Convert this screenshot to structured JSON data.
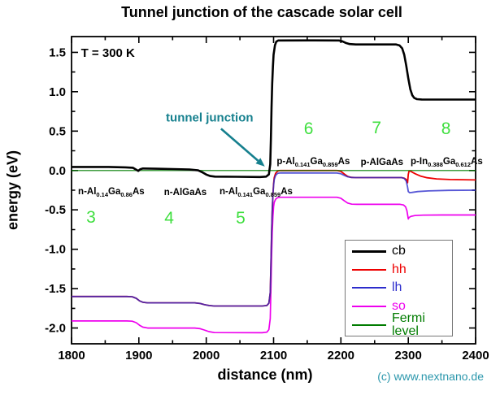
{
  "title": "Tunnel junction of the cascade solar cell",
  "chart_data": {
    "type": "line",
    "title": "Tunnel junction of the cascade solar cell",
    "xlabel": "distance (nm)",
    "ylabel": "energy (eV)",
    "xlim": [
      1800,
      2400
    ],
    "ylim": [
      -2.2,
      1.7
    ],
    "x_major_ticks": [
      1800,
      1900,
      2000,
      2100,
      2200,
      2300,
      2400
    ],
    "x_minor_step": 50,
    "y_major_ticks": [
      1.5,
      1.0,
      0.5,
      0.0,
      -0.5,
      -1.0,
      -1.5,
      -2.0
    ],
    "y_minor_step": 0.25,
    "grid": false,
    "legend_position": "inside-bottom-right",
    "series": [
      {
        "name": "cb",
        "color": "#000000",
        "points": [
          [
            1800,
            0.045
          ],
          [
            1855,
            0.045
          ],
          [
            1880,
            0.04
          ],
          [
            1891,
            0.035
          ],
          [
            1896,
            0.01
          ],
          [
            1899,
            -0.005
          ],
          [
            1902,
            0.015
          ],
          [
            1906,
            0.025
          ],
          [
            1925,
            0.022
          ],
          [
            1950,
            0.018
          ],
          [
            1975,
            0.012
          ],
          [
            1988,
            0.002
          ],
          [
            1994,
            -0.022
          ],
          [
            2000,
            -0.052
          ],
          [
            2006,
            -0.07
          ],
          [
            2013,
            -0.078
          ],
          [
            2045,
            -0.08
          ],
          [
            2080,
            -0.083
          ],
          [
            2089,
            -0.078
          ],
          [
            2093,
            -0.05
          ],
          [
            2095,
            0.08
          ],
          [
            2096,
            0.4
          ],
          [
            2097,
            0.8
          ],
          [
            2098,
            1.1
          ],
          [
            2099,
            1.32
          ],
          [
            2100,
            1.47
          ],
          [
            2102,
            1.59
          ],
          [
            2104,
            1.635
          ],
          [
            2107,
            1.65
          ],
          [
            2160,
            1.652
          ],
          [
            2197,
            1.65
          ],
          [
            2202,
            1.64
          ],
          [
            2207,
            1.621
          ],
          [
            2213,
            1.605
          ],
          [
            2222,
            1.6
          ],
          [
            2282,
            1.6
          ],
          [
            2287,
            1.588
          ],
          [
            2291,
            1.55
          ],
          [
            2294,
            1.47
          ],
          [
            2297,
            1.33
          ],
          [
            2300,
            1.17
          ],
          [
            2303,
            1.03
          ],
          [
            2306,
            0.955
          ],
          [
            2309,
            0.92
          ],
          [
            2313,
            0.906
          ],
          [
            2320,
            0.901
          ],
          [
            2400,
            0.9
          ]
        ]
      },
      {
        "name": "hh",
        "color": "#ee0000",
        "points": [
          [
            1800,
            -1.6
          ],
          [
            1882,
            -1.6
          ],
          [
            1890,
            -1.603
          ],
          [
            1896,
            -1.622
          ],
          [
            1901,
            -1.655
          ],
          [
            1906,
            -1.673
          ],
          [
            1913,
            -1.68
          ],
          [
            1983,
            -1.68
          ],
          [
            1991,
            -1.688
          ],
          [
            1997,
            -1.703
          ],
          [
            2004,
            -1.714
          ],
          [
            2012,
            -1.72
          ],
          [
            2083,
            -1.72
          ],
          [
            2090,
            -1.714
          ],
          [
            2093,
            -1.685
          ],
          [
            2095,
            -1.55
          ],
          [
            2096,
            -1.2
          ],
          [
            2097,
            -0.82
          ],
          [
            2098,
            -0.52
          ],
          [
            2099,
            -0.31
          ],
          [
            2100,
            -0.17
          ],
          [
            2101,
            -0.09
          ],
          [
            2103,
            -0.035
          ],
          [
            2106,
            -0.008
          ],
          [
            2110,
            0
          ],
          [
            2194,
            0
          ],
          [
            2200,
            -0.012
          ],
          [
            2205,
            -0.045
          ],
          [
            2210,
            -0.075
          ],
          [
            2215,
            -0.087
          ],
          [
            2222,
            -0.09
          ],
          [
            2290,
            -0.09
          ],
          [
            2294,
            -0.097
          ],
          [
            2297,
            -0.115
          ],
          [
            2299,
            -0.155
          ],
          [
            2300,
            -0.05
          ],
          [
            2301,
            -0.012
          ],
          [
            2303,
            -0.008
          ],
          [
            2306,
            -0.022
          ],
          [
            2311,
            -0.045
          ],
          [
            2318,
            -0.07
          ],
          [
            2328,
            -0.092
          ],
          [
            2342,
            -0.107
          ],
          [
            2362,
            -0.115
          ],
          [
            2400,
            -0.12
          ]
        ]
      },
      {
        "name": "lh",
        "color": "#2d2dcc",
        "points": [
          [
            1800,
            -1.6
          ],
          [
            1882,
            -1.6
          ],
          [
            1890,
            -1.603
          ],
          [
            1896,
            -1.622
          ],
          [
            1901,
            -1.655
          ],
          [
            1906,
            -1.673
          ],
          [
            1913,
            -1.68
          ],
          [
            1983,
            -1.68
          ],
          [
            1991,
            -1.688
          ],
          [
            1997,
            -1.703
          ],
          [
            2004,
            -1.714
          ],
          [
            2012,
            -1.72
          ],
          [
            2083,
            -1.72
          ],
          [
            2090,
            -1.714
          ],
          [
            2093,
            -1.685
          ],
          [
            2095,
            -1.55
          ],
          [
            2096,
            -1.2
          ],
          [
            2097,
            -0.82
          ],
          [
            2098,
            -0.52
          ],
          [
            2099,
            -0.31
          ],
          [
            2100,
            -0.19
          ],
          [
            2101,
            -0.115
          ],
          [
            2103,
            -0.062
          ],
          [
            2106,
            -0.036
          ],
          [
            2110,
            -0.03
          ],
          [
            2194,
            -0.032
          ],
          [
            2200,
            -0.042
          ],
          [
            2205,
            -0.062
          ],
          [
            2210,
            -0.08
          ],
          [
            2215,
            -0.088
          ],
          [
            2222,
            -0.09
          ],
          [
            2290,
            -0.09
          ],
          [
            2294,
            -0.1
          ],
          [
            2297,
            -0.135
          ],
          [
            2299,
            -0.21
          ],
          [
            2300,
            -0.268
          ],
          [
            2302,
            -0.282
          ],
          [
            2306,
            -0.278
          ],
          [
            2314,
            -0.268
          ],
          [
            2330,
            -0.259
          ],
          [
            2360,
            -0.252
          ],
          [
            2400,
            -0.25
          ]
        ]
      },
      {
        "name": "so",
        "color": "#ee00ee",
        "points": [
          [
            1800,
            -1.91
          ],
          [
            1882,
            -1.91
          ],
          [
            1890,
            -1.913
          ],
          [
            1896,
            -1.932
          ],
          [
            1901,
            -1.965
          ],
          [
            1906,
            -1.988
          ],
          [
            1913,
            -2
          ],
          [
            1983,
            -2
          ],
          [
            1991,
            -2.008
          ],
          [
            1997,
            -2.025
          ],
          [
            2004,
            -2.045
          ],
          [
            2012,
            -2.058
          ],
          [
            2083,
            -2.06
          ],
          [
            2090,
            -2.052
          ],
          [
            2093,
            -2.02
          ],
          [
            2095,
            -1.88
          ],
          [
            2096,
            -1.52
          ],
          [
            2097,
            -1.12
          ],
          [
            2098,
            -0.8
          ],
          [
            2099,
            -0.58
          ],
          [
            2100,
            -0.46
          ],
          [
            2101,
            -0.405
          ],
          [
            2103,
            -0.365
          ],
          [
            2106,
            -0.345
          ],
          [
            2110,
            -0.34
          ],
          [
            2194,
            -0.34
          ],
          [
            2200,
            -0.352
          ],
          [
            2205,
            -0.385
          ],
          [
            2210,
            -0.413
          ],
          [
            2216,
            -0.427
          ],
          [
            2224,
            -0.43
          ],
          [
            2288,
            -0.43
          ],
          [
            2293,
            -0.438
          ],
          [
            2296,
            -0.462
          ],
          [
            2298,
            -0.51
          ],
          [
            2300,
            -0.615
          ],
          [
            2301,
            -0.598
          ],
          [
            2304,
            -0.582
          ],
          [
            2310,
            -0.572
          ],
          [
            2322,
            -0.567
          ],
          [
            2350,
            -0.565
          ],
          [
            2400,
            -0.565
          ]
        ]
      },
      {
        "name": "Fermi level",
        "color": "#007c00",
        "points": [
          [
            1800,
            0
          ],
          [
            2400,
            0
          ]
        ]
      }
    ],
    "annotations": {
      "temperature": {
        "text": "T = 300 K",
        "x": 1814,
        "y": 1.48
      },
      "tunnel_junction": {
        "text": "tunnel junction",
        "x": 2005,
        "y": 0.67,
        "color": "#16808e",
        "arrow": {
          "x1": 2022,
          "y1": 0.53,
          "x2": 2087,
          "y2": 0.05
        }
      },
      "region_numbers": {
        "color": "#3fdf3f",
        "items": [
          {
            "label": "3",
            "x": 1829,
            "y": -0.6
          },
          {
            "label": "4",
            "x": 1945,
            "y": -0.61
          },
          {
            "label": "5",
            "x": 2051,
            "y": -0.61
          },
          {
            "label": "6",
            "x": 2152,
            "y": 0.52
          },
          {
            "label": "7",
            "x": 2253,
            "y": 0.53
          },
          {
            "label": "8",
            "x": 2356,
            "y": 0.52
          }
        ]
      },
      "materials": {
        "items": [
          {
            "formula": "n-Al_{0.14}Ga_{0.86}As",
            "x": 1859,
            "y": -0.28
          },
          {
            "formula": "n-AlGaAs",
            "x": 1969,
            "y": -0.28
          },
          {
            "formula": "n-Al_{0.141}Ga_{0.859}As",
            "x": 2074,
            "y": -0.28
          },
          {
            "formula": "p-Al_{0.141}Ga_{0.859}As",
            "x": 2159,
            "y": 0.1
          },
          {
            "formula": "p-AlGaAs",
            "x": 2261,
            "y": 0.1
          },
          {
            "formula": "p-In_{0.388}Ga_{0.612}As",
            "x": 2357,
            "y": 0.1
          }
        ]
      }
    }
  },
  "footer": {
    "copyright": "(c) www.nextnano.de",
    "color": "#2b97ac"
  }
}
